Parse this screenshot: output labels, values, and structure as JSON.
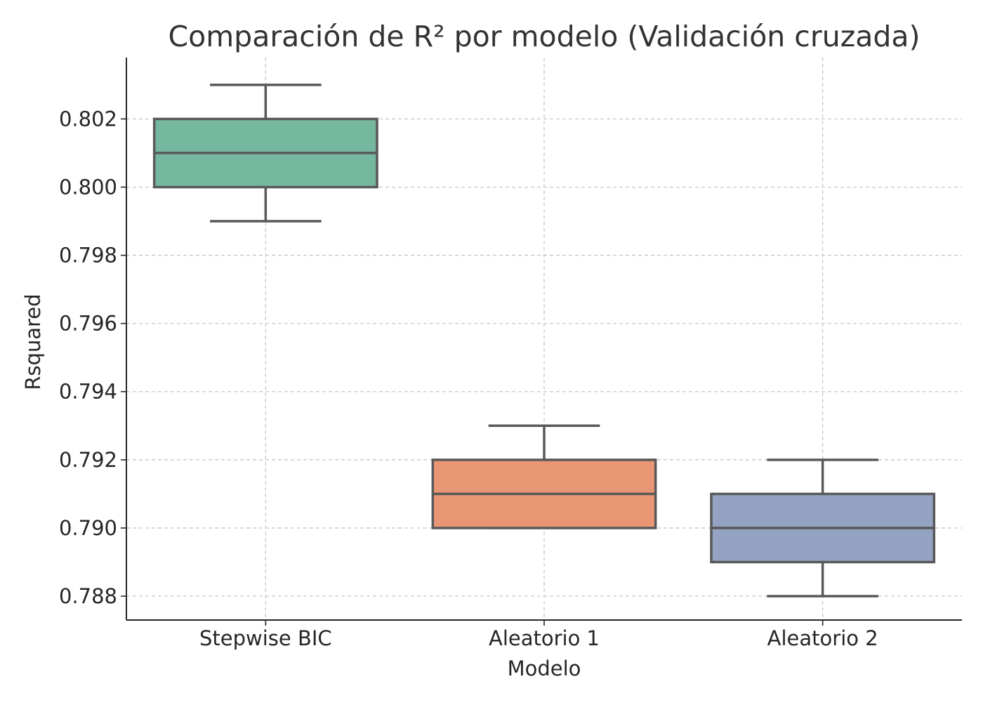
{
  "chart_data": {
    "type": "box",
    "title": "Comparación de R² por modelo (Validación cruzada)",
    "xlabel": "Modelo",
    "ylabel": "Rsquared",
    "ylim": [
      0.7873,
      0.8038
    ],
    "yticks": [
      0.788,
      0.79,
      0.792,
      0.794,
      0.796,
      0.798,
      0.8,
      0.802
    ],
    "ytick_labels": [
      "0.788",
      "0.790",
      "0.792",
      "0.794",
      "0.796",
      "0.798",
      "0.800",
      "0.802"
    ],
    "grid": true,
    "categories": [
      "Stepwise BIC",
      "Aleatorio 1",
      "Aleatorio 2"
    ],
    "boxes": [
      {
        "category": "Stepwise BIC",
        "whisker_low": 0.799,
        "q1": 0.8,
        "median": 0.801,
        "q3": 0.802,
        "whisker_high": 0.803,
        "color": "#76b7a0"
      },
      {
        "category": "Aleatorio 1",
        "whisker_low": 0.79,
        "q1": 0.79,
        "median": 0.791,
        "q3": 0.792,
        "whisker_high": 0.793,
        "color": "#e99675"
      },
      {
        "category": "Aleatorio 2",
        "whisker_low": 0.788,
        "q1": 0.789,
        "median": 0.79,
        "q3": 0.791,
        "whisker_high": 0.792,
        "color": "#94a3c2"
      }
    ],
    "colors": {
      "box_edge": "#595959",
      "grid": "#c8c8c8",
      "axis": "#262626"
    }
  }
}
